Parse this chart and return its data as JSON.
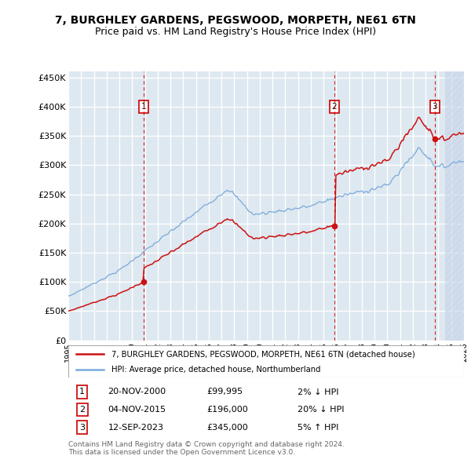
{
  "title": "7, BURGHLEY GARDENS, PEGSWOOD, MORPETH, NE61 6TN",
  "subtitle": "Price paid vs. HM Land Registry's House Price Index (HPI)",
  "ylim": [
    0,
    460000
  ],
  "xlim": [
    1995.0,
    2026.0
  ],
  "yticks": [
    0,
    50000,
    100000,
    150000,
    200000,
    250000,
    300000,
    350000,
    400000,
    450000
  ],
  "ytick_labels": [
    "£0",
    "£50K",
    "£100K",
    "£150K",
    "£200K",
    "£250K",
    "£300K",
    "£350K",
    "£400K",
    "£450K"
  ],
  "plot_bg_color": "#dde8f0",
  "grid_color": "#ffffff",
  "sale_color": "#cc1111",
  "hpi_color": "#7aaadd",
  "sale1_date": 2000.89,
  "sale1_price": 99995,
  "sale2_date": 2015.84,
  "sale2_price": 196000,
  "sale3_date": 2023.71,
  "sale3_price": 345000,
  "legend_line1": "7, BURGHLEY GARDENS, PEGSWOOD, MORPETH, NE61 6TN (detached house)",
  "legend_line2": "HPI: Average price, detached house, Northumberland",
  "table_rows": [
    [
      "1",
      "20-NOV-2000",
      "£99,995",
      "2% ↓ HPI"
    ],
    [
      "2",
      "04-NOV-2015",
      "£196,000",
      "20% ↓ HPI"
    ],
    [
      "3",
      "12-SEP-2023",
      "£345,000",
      "5% ↑ HPI"
    ]
  ],
  "footnote": "Contains HM Land Registry data © Crown copyright and database right 2024.\nThis data is licensed under the Open Government Licence v3.0.",
  "title_fontsize": 10,
  "subtitle_fontsize": 9
}
